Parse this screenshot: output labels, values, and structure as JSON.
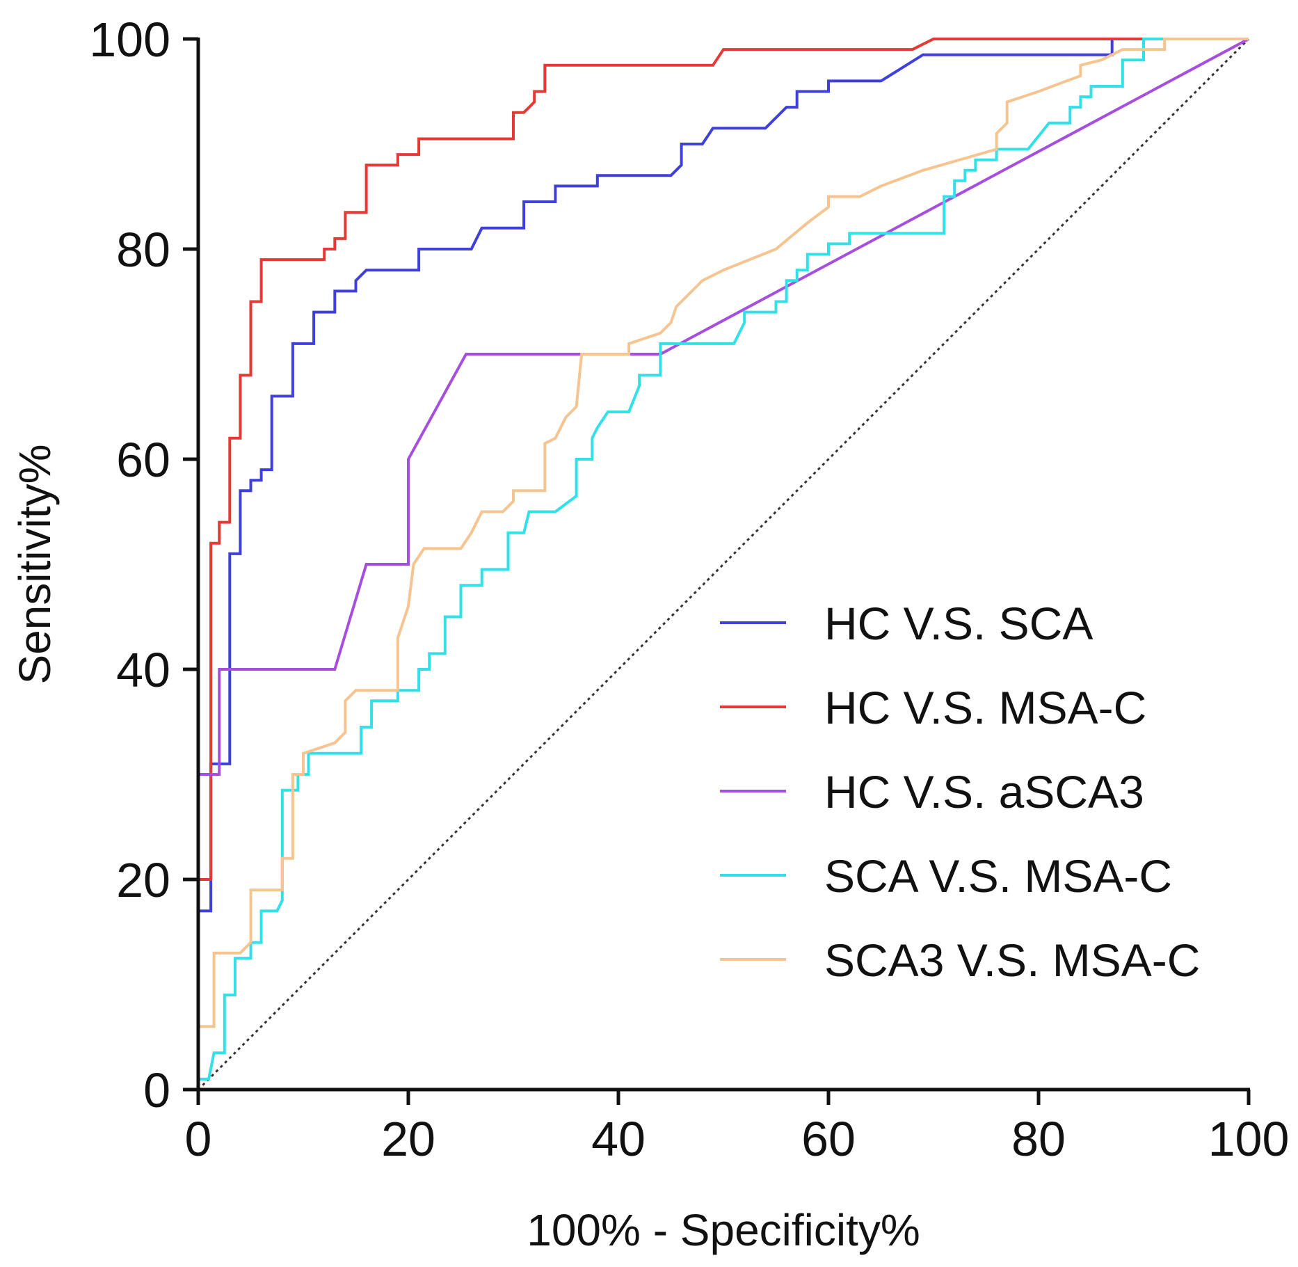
{
  "chart_data": {
    "type": "line",
    "title": "",
    "xlabel": "100% - Specificity%",
    "ylabel": "Sensitivity%",
    "xlim": [
      0,
      100
    ],
    "ylim": [
      0,
      100
    ],
    "x_ticks": [
      "0",
      "20",
      "40",
      "60",
      "80",
      "100"
    ],
    "y_ticks": [
      "0",
      "20",
      "40",
      "60",
      "80",
      "100"
    ],
    "grid": false,
    "legend_position": "bottom-right",
    "reference_line": {
      "style": "dotted",
      "from": [
        0,
        0
      ],
      "to": [
        100,
        100
      ],
      "color": "#333333"
    },
    "series": [
      {
        "name": "HC V.S. SCA",
        "color": "#3f3fdc",
        "points": [
          [
            0,
            0
          ],
          [
            0,
            17
          ],
          [
            1.2,
            17
          ],
          [
            1.2,
            31
          ],
          [
            3,
            31
          ],
          [
            3,
            51
          ],
          [
            4,
            51
          ],
          [
            4,
            57
          ],
          [
            5,
            57
          ],
          [
            5,
            58
          ],
          [
            6,
            58
          ],
          [
            6,
            59
          ],
          [
            7,
            59
          ],
          [
            7,
            66
          ],
          [
            9,
            66
          ],
          [
            9,
            71
          ],
          [
            11,
            71
          ],
          [
            11,
            74
          ],
          [
            13,
            74
          ],
          [
            13,
            76
          ],
          [
            15,
            76
          ],
          [
            15,
            77
          ],
          [
            16,
            78
          ],
          [
            21,
            78
          ],
          [
            21,
            80
          ],
          [
            26,
            80
          ],
          [
            27,
            82
          ],
          [
            31,
            82
          ],
          [
            31,
            84.5
          ],
          [
            34,
            84.5
          ],
          [
            34,
            86
          ],
          [
            38,
            86
          ],
          [
            38,
            87
          ],
          [
            45,
            87
          ],
          [
            46,
            88
          ],
          [
            46,
            90
          ],
          [
            48,
            90
          ],
          [
            49,
            91.5
          ],
          [
            54,
            91.5
          ],
          [
            56,
            93.5
          ],
          [
            57,
            93.5
          ],
          [
            57,
            95
          ],
          [
            60,
            95
          ],
          [
            60,
            96
          ],
          [
            65,
            96
          ],
          [
            69,
            98.5
          ],
          [
            87,
            98.5
          ],
          [
            87,
            100
          ],
          [
            100,
            100
          ]
        ]
      },
      {
        "name": "HC V.S. MSA-C",
        "color": "#e53935",
        "points": [
          [
            0,
            0
          ],
          [
            0,
            20
          ],
          [
            1.2,
            20
          ],
          [
            1.2,
            52
          ],
          [
            2,
            52
          ],
          [
            2,
            54
          ],
          [
            3,
            54
          ],
          [
            3,
            62
          ],
          [
            4,
            62
          ],
          [
            4,
            68
          ],
          [
            5,
            68
          ],
          [
            5,
            75
          ],
          [
            6,
            75
          ],
          [
            6,
            79
          ],
          [
            12,
            79
          ],
          [
            12,
            80
          ],
          [
            13,
            80
          ],
          [
            13,
            81
          ],
          [
            14,
            81
          ],
          [
            14,
            83.5
          ],
          [
            16,
            83.5
          ],
          [
            16,
            88
          ],
          [
            19,
            88
          ],
          [
            19,
            89
          ],
          [
            21,
            89
          ],
          [
            21,
            90.5
          ],
          [
            30,
            90.5
          ],
          [
            30,
            93
          ],
          [
            31,
            93
          ],
          [
            32,
            94
          ],
          [
            32,
            95
          ],
          [
            33,
            95
          ],
          [
            33,
            97.5
          ],
          [
            49,
            97.5
          ],
          [
            50,
            99
          ],
          [
            68,
            99
          ],
          [
            70,
            100
          ],
          [
            100,
            100
          ]
        ]
      },
      {
        "name": "HC V.S. aSCA3",
        "color": "#a64ee0",
        "points": [
          [
            0,
            0
          ],
          [
            0,
            30
          ],
          [
            1.2,
            30
          ],
          [
            1.2,
            30
          ],
          [
            2,
            30
          ],
          [
            2,
            40
          ],
          [
            13,
            40
          ],
          [
            16,
            50
          ],
          [
            20,
            50
          ],
          [
            20,
            60
          ],
          [
            25.5,
            70
          ],
          [
            44,
            70
          ],
          [
            100,
            100
          ]
        ]
      },
      {
        "name": "SCA V.S. MSA-C",
        "color": "#33e0e8",
        "points": [
          [
            0,
            0
          ],
          [
            0,
            1
          ],
          [
            1,
            1
          ],
          [
            1.5,
            3.5
          ],
          [
            2.5,
            3.5
          ],
          [
            2.5,
            9
          ],
          [
            3.5,
            9
          ],
          [
            3.5,
            12.5
          ],
          [
            5,
            12.5
          ],
          [
            5,
            14
          ],
          [
            6,
            14
          ],
          [
            6,
            17
          ],
          [
            7.5,
            17
          ],
          [
            8,
            18
          ],
          [
            8,
            28.5
          ],
          [
            9.5,
            28.5
          ],
          [
            9.5,
            30
          ],
          [
            10.5,
            30
          ],
          [
            10.5,
            32
          ],
          [
            15.5,
            32
          ],
          [
            15.5,
            34.5
          ],
          [
            16.5,
            34.5
          ],
          [
            16.5,
            37
          ],
          [
            19,
            37
          ],
          [
            19,
            38
          ],
          [
            21,
            38
          ],
          [
            21,
            40
          ],
          [
            22,
            40
          ],
          [
            22,
            41.5
          ],
          [
            23.5,
            41.5
          ],
          [
            23.5,
            45
          ],
          [
            25,
            45
          ],
          [
            25,
            48
          ],
          [
            27,
            48
          ],
          [
            27,
            49.5
          ],
          [
            29.5,
            49.5
          ],
          [
            29.5,
            53
          ],
          [
            31,
            53
          ],
          [
            31.5,
            55
          ],
          [
            34,
            55
          ],
          [
            36,
            56.5
          ],
          [
            36,
            60
          ],
          [
            37.5,
            60
          ],
          [
            37.5,
            62
          ],
          [
            38,
            63
          ],
          [
            39,
            64.5
          ],
          [
            41,
            64.5
          ],
          [
            42,
            67
          ],
          [
            42,
            68
          ],
          [
            44,
            68
          ],
          [
            44,
            71
          ],
          [
            51,
            71
          ],
          [
            52,
            73
          ],
          [
            52,
            74
          ],
          [
            55,
            74
          ],
          [
            55,
            75
          ],
          [
            56,
            75
          ],
          [
            56,
            77
          ],
          [
            57,
            77
          ],
          [
            57,
            78
          ],
          [
            58,
            78
          ],
          [
            58,
            79.5
          ],
          [
            60,
            79.5
          ],
          [
            60,
            80.5
          ],
          [
            62,
            80.5
          ],
          [
            62,
            81.5
          ],
          [
            71,
            81.5
          ],
          [
            71,
            85
          ],
          [
            72,
            85
          ],
          [
            72,
            86.5
          ],
          [
            73,
            86.5
          ],
          [
            73,
            87.5
          ],
          [
            74,
            87.5
          ],
          [
            74,
            88.5
          ],
          [
            76,
            88.5
          ],
          [
            76,
            89.5
          ],
          [
            79,
            89.5
          ],
          [
            81,
            92
          ],
          [
            83,
            92
          ],
          [
            83,
            93.5
          ],
          [
            84,
            93.5
          ],
          [
            84,
            94.5
          ],
          [
            85,
            94.5
          ],
          [
            85,
            95.5
          ],
          [
            88,
            95.5
          ],
          [
            88,
            98
          ],
          [
            90,
            98
          ],
          [
            90,
            100
          ],
          [
            100,
            100
          ]
        ]
      },
      {
        "name": "SCA3 V.S. MSA-C",
        "color": "#f6c490",
        "points": [
          [
            0,
            0
          ],
          [
            0,
            6
          ],
          [
            1.5,
            6
          ],
          [
            1.5,
            13
          ],
          [
            4,
            13
          ],
          [
            4,
            13
          ],
          [
            5,
            14
          ],
          [
            5,
            19
          ],
          [
            8,
            19
          ],
          [
            8,
            22
          ],
          [
            9,
            22
          ],
          [
            9,
            30
          ],
          [
            10,
            30
          ],
          [
            10,
            32
          ],
          [
            13,
            33
          ],
          [
            14,
            34
          ],
          [
            14,
            37
          ],
          [
            15,
            38
          ],
          [
            19,
            38
          ],
          [
            19,
            43
          ],
          [
            20,
            46
          ],
          [
            20.5,
            50
          ],
          [
            21.5,
            51.5
          ],
          [
            25,
            51.5
          ],
          [
            26,
            53
          ],
          [
            27,
            55
          ],
          [
            29,
            55
          ],
          [
            30,
            56
          ],
          [
            30,
            57
          ],
          [
            33,
            57
          ],
          [
            33,
            61.5
          ],
          [
            34,
            62
          ],
          [
            35,
            64
          ],
          [
            36,
            65
          ],
          [
            36.5,
            70
          ],
          [
            41,
            70
          ],
          [
            41,
            71
          ],
          [
            44,
            72
          ],
          [
            45,
            73
          ],
          [
            45.5,
            74.5
          ],
          [
            48,
            77
          ],
          [
            50,
            78
          ],
          [
            55,
            80
          ],
          [
            58,
            82.5
          ],
          [
            60,
            84
          ],
          [
            60,
            85
          ],
          [
            63,
            85
          ],
          [
            65,
            86
          ],
          [
            69,
            87.5
          ],
          [
            76,
            89.5
          ],
          [
            76,
            91
          ],
          [
            77,
            92
          ],
          [
            77,
            94
          ],
          [
            80,
            95
          ],
          [
            84,
            96.5
          ],
          [
            84,
            97.5
          ],
          [
            86,
            98
          ],
          [
            88,
            99
          ],
          [
            92,
            99
          ],
          [
            92,
            100
          ],
          [
            100,
            100
          ]
        ]
      }
    ]
  }
}
